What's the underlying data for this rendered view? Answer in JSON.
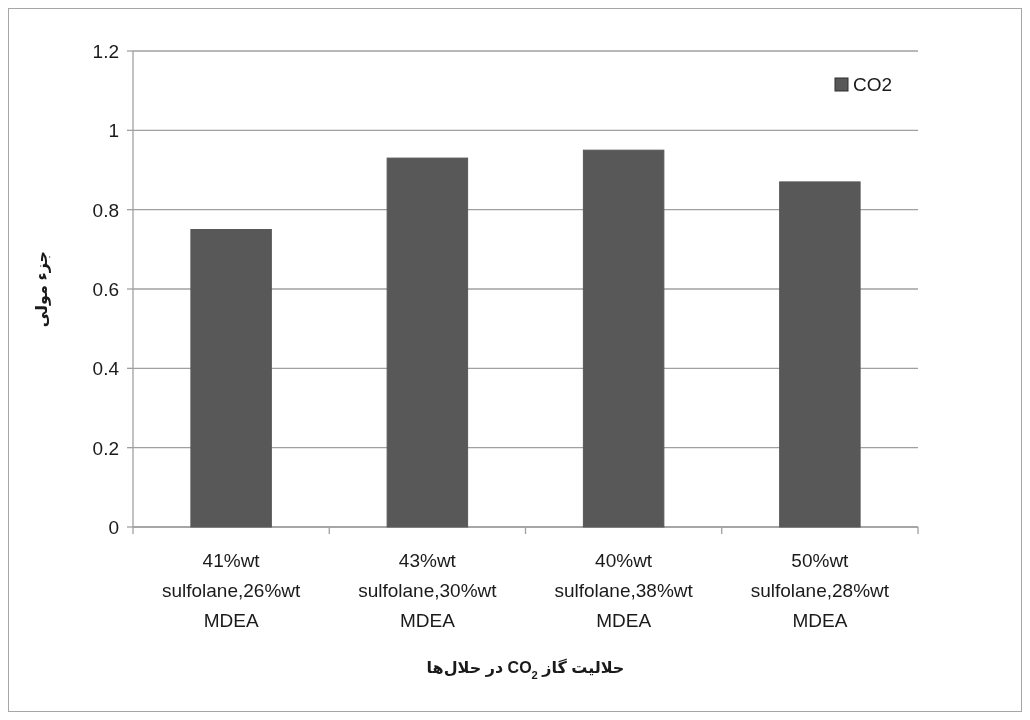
{
  "chart_data": {
    "type": "bar",
    "xlabel": "حلالیت گاز CO$_{2}$ در حلال‌ها",
    "ylabel": "جزء مولی",
    "categories": [
      "41%wt sulfolane,26%wt MDEA",
      "43%wt sulfolane,30%wt MDEA",
      "40%wt sulfolane,38%wt MDEA",
      "50%wt sulfolane,28%wt MDEA"
    ],
    "series": [
      {
        "name": "CO2",
        "color": "#585858",
        "values": [
          0.75,
          0.93,
          0.95,
          0.87
        ]
      }
    ],
    "ylim": [
      0,
      1.2
    ],
    "yticks": [
      0,
      0.2,
      0.4,
      0.6,
      0.8,
      1,
      1.2
    ],
    "grid": "y",
    "legend": "top right"
  }
}
